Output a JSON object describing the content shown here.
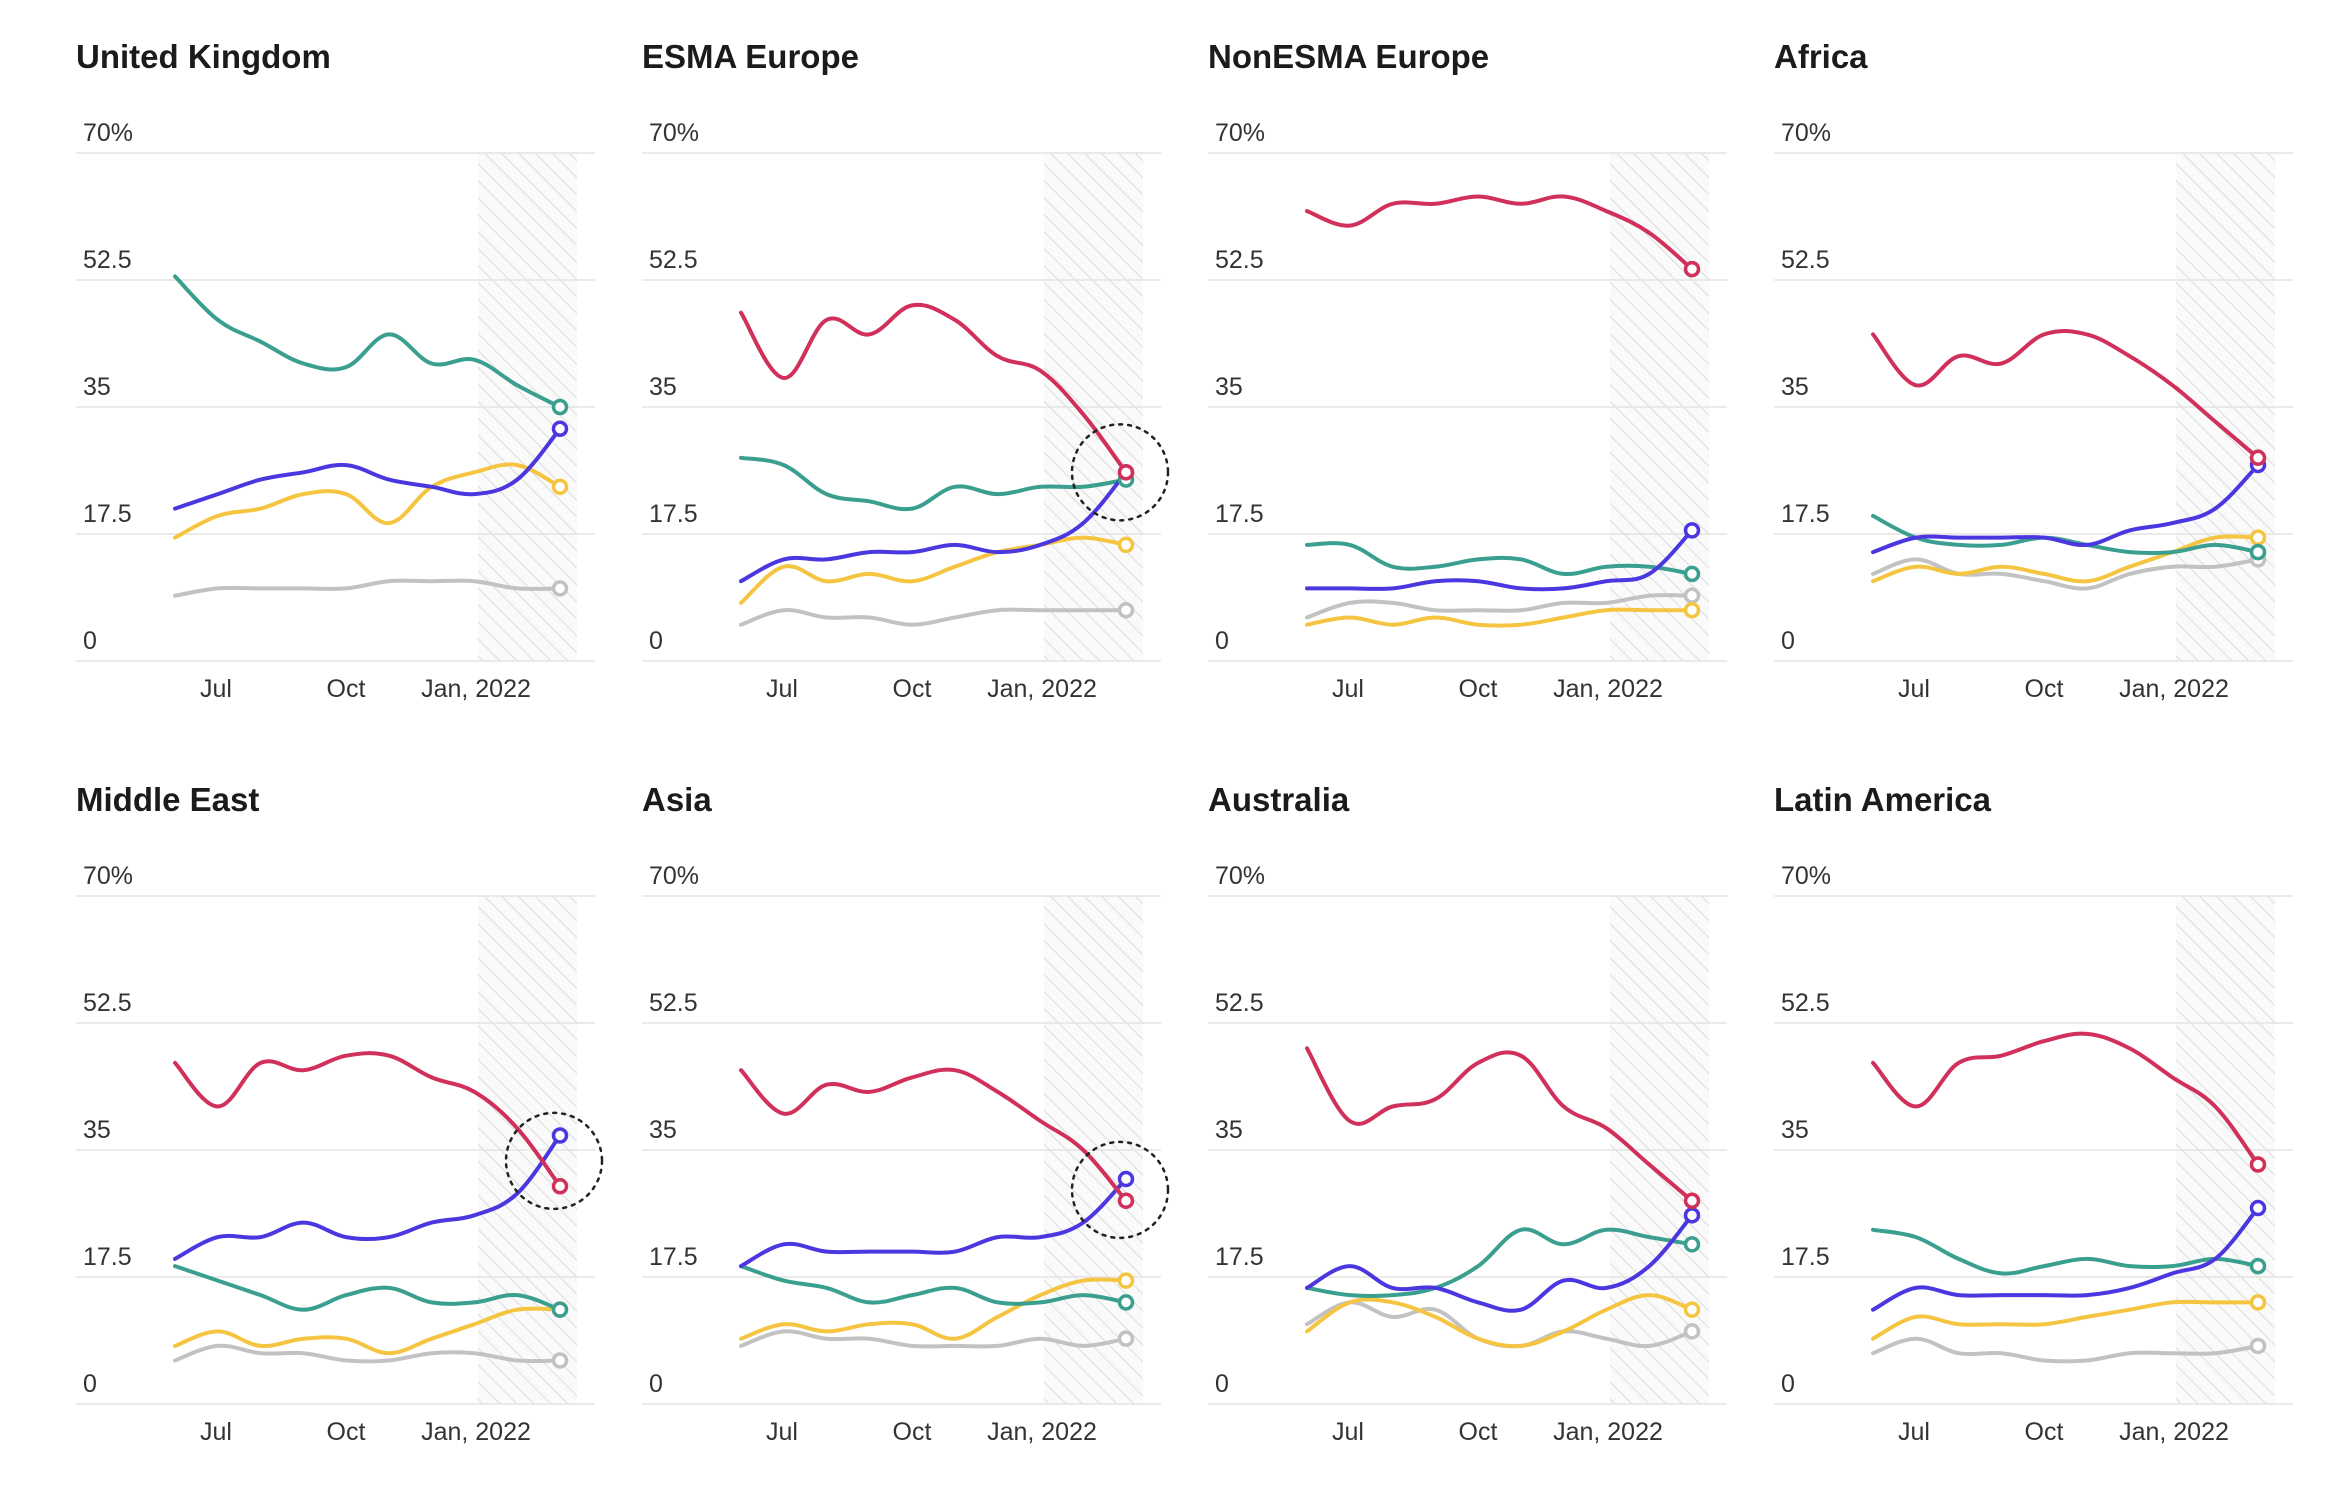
{
  "colors": {
    "red": "#d0305a",
    "teal": "#3b9f8f",
    "blue": "#4a37e0",
    "yellow": "#f5c542",
    "gray": "#c2c2c2",
    "grid": "#e3e3e3",
    "hatch": "#dcdcdc"
  },
  "chart_data": [
    {
      "title": "United Kingdom",
      "type": "line",
      "y_ticks": [
        "70%",
        "52.5",
        "35",
        "17.5",
        "0"
      ],
      "x_ticks": [
        "Jul",
        "Oct",
        "Jan, 2022"
      ],
      "ylim": [
        0,
        70
      ],
      "shaded_region": "Jan, 2022 – end",
      "highlight_circle": false,
      "series": [
        {
          "color": "teal",
          "values": [
            53,
            47,
            44,
            41,
            40.5,
            45,
            41,
            41.5,
            38,
            35
          ]
        },
        {
          "color": "blue",
          "values": [
            21,
            23,
            25,
            26,
            27,
            25,
            24,
            23,
            25,
            32
          ]
        },
        {
          "color": "yellow",
          "values": [
            17,
            20,
            21,
            23,
            23,
            19,
            24,
            26,
            27,
            24
          ]
        },
        {
          "color": "gray",
          "values": [
            9,
            10,
            10,
            10,
            10,
            11,
            11,
            11,
            10,
            10
          ]
        }
      ]
    },
    {
      "title": "ESMA Europe",
      "type": "line",
      "y_ticks": [
        "70%",
        "52.5",
        "35",
        "17.5",
        "0"
      ],
      "x_ticks": [
        "Jul",
        "Oct",
        "Jan, 2022"
      ],
      "ylim": [
        0,
        70
      ],
      "shaded_region": "Jan, 2022 – end",
      "highlight_circle": true,
      "series": [
        {
          "color": "red",
          "values": [
            48,
            39,
            47,
            45,
            49,
            47,
            42,
            40,
            34,
            26
          ]
        },
        {
          "color": "teal",
          "values": [
            28,
            27,
            23,
            22,
            21,
            24,
            23,
            24,
            24,
            25
          ]
        },
        {
          "color": "blue",
          "values": [
            11,
            14,
            14,
            15,
            15,
            16,
            15,
            16,
            19,
            26
          ]
        },
        {
          "color": "yellow",
          "values": [
            8,
            13,
            11,
            12,
            11,
            13,
            15,
            16,
            17,
            16
          ]
        },
        {
          "color": "gray",
          "values": [
            5,
            7,
            6,
            6,
            5,
            6,
            7,
            7,
            7,
            7
          ]
        }
      ]
    },
    {
      "title": "NonESMA Europe",
      "type": "line",
      "y_ticks": [
        "70%",
        "52.5",
        "35",
        "17.5",
        "0"
      ],
      "x_ticks": [
        "Jul",
        "Oct",
        "Jan, 2022"
      ],
      "ylim": [
        0,
        70
      ],
      "shaded_region": "Jan, 2022 – end",
      "highlight_circle": false,
      "series": [
        {
          "color": "red",
          "values": [
            62,
            60,
            63,
            63,
            64,
            63,
            64,
            62,
            59,
            54
          ]
        },
        {
          "color": "teal",
          "values": [
            16,
            16,
            13,
            13,
            14,
            14,
            12,
            13,
            13,
            12
          ]
        },
        {
          "color": "blue",
          "values": [
            10,
            10,
            10,
            11,
            11,
            10,
            10,
            11,
            12,
            18
          ]
        },
        {
          "color": "gray",
          "values": [
            6,
            8,
            8,
            7,
            7,
            7,
            8,
            8,
            9,
            9
          ]
        },
        {
          "color": "yellow",
          "values": [
            5,
            6,
            5,
            6,
            5,
            5,
            6,
            7,
            7,
            7
          ]
        }
      ]
    },
    {
      "title": "Africa",
      "type": "line",
      "y_ticks": [
        "70%",
        "52.5",
        "35",
        "17.5",
        "0"
      ],
      "x_ticks": [
        "Jul",
        "Oct",
        "Jan, 2022"
      ],
      "ylim": [
        0,
        70
      ],
      "shaded_region": "Jan, 2022 – end",
      "highlight_circle": false,
      "series": [
        {
          "color": "red",
          "values": [
            45,
            38,
            42,
            41,
            45,
            45,
            42,
            38,
            33,
            28
          ]
        },
        {
          "color": "blue",
          "values": [
            15,
            17,
            17,
            17,
            17,
            16,
            18,
            19,
            21,
            27
          ]
        },
        {
          "color": "teal",
          "values": [
            20,
            17,
            16,
            16,
            17,
            16,
            15,
            15,
            16,
            15
          ]
        },
        {
          "color": "yellow",
          "values": [
            11,
            13,
            12,
            13,
            12,
            11,
            13,
            15,
            17,
            17
          ]
        },
        {
          "color": "gray",
          "values": [
            12,
            14,
            12,
            12,
            11,
            10,
            12,
            13,
            13,
            14
          ]
        }
      ]
    },
    {
      "title": "Middle East",
      "type": "line",
      "y_ticks": [
        "70%",
        "52.5",
        "35",
        "17.5",
        "0"
      ],
      "x_ticks": [
        "Jul",
        "Oct",
        "Jan, 2022"
      ],
      "ylim": [
        0,
        70
      ],
      "shaded_region": "Jan, 2022 – end",
      "highlight_circle": true,
      "series": [
        {
          "color": "red",
          "values": [
            47,
            41,
            47,
            46,
            48,
            48,
            45,
            43,
            38,
            30
          ]
        },
        {
          "color": "blue",
          "values": [
            20,
            23,
            23,
            25,
            23,
            23,
            25,
            26,
            29,
            37
          ]
        },
        {
          "color": "teal",
          "values": [
            19,
            17,
            15,
            13,
            15,
            16,
            14,
            14,
            15,
            13
          ]
        },
        {
          "color": "yellow",
          "values": [
            8,
            10,
            8,
            9,
            9,
            7,
            9,
            11,
            13,
            13
          ]
        },
        {
          "color": "gray",
          "values": [
            6,
            8,
            7,
            7,
            6,
            6,
            7,
            7,
            6,
            6
          ]
        }
      ]
    },
    {
      "title": "Asia",
      "type": "line",
      "y_ticks": [
        "70%",
        "52.5",
        "35",
        "17.5",
        "0"
      ],
      "x_ticks": [
        "Jul",
        "Oct",
        "Jan, 2022"
      ],
      "ylim": [
        0,
        70
      ],
      "shaded_region": "Jan, 2022 – end",
      "highlight_circle": true,
      "series": [
        {
          "color": "red",
          "values": [
            46,
            40,
            44,
            43,
            45,
            46,
            43,
            39,
            35,
            28
          ]
        },
        {
          "color": "blue",
          "values": [
            19,
            22,
            21,
            21,
            21,
            21,
            23,
            23,
            25,
            31
          ]
        },
        {
          "color": "teal",
          "values": [
            19,
            17,
            16,
            14,
            15,
            16,
            14,
            14,
            15,
            14
          ]
        },
        {
          "color": "yellow",
          "values": [
            9,
            11,
            10,
            11,
            11,
            9,
            12,
            15,
            17,
            17
          ]
        },
        {
          "color": "gray",
          "values": [
            8,
            10,
            9,
            9,
            8,
            8,
            8,
            9,
            8,
            9
          ]
        }
      ]
    },
    {
      "title": "Australia",
      "type": "line",
      "y_ticks": [
        "70%",
        "52.5",
        "35",
        "17.5",
        "0"
      ],
      "x_ticks": [
        "Jul",
        "Oct",
        "Jan, 2022"
      ],
      "ylim": [
        0,
        70
      ],
      "shaded_region": "Jan, 2022 – end",
      "highlight_circle": false,
      "series": [
        {
          "color": "red",
          "values": [
            49,
            39,
            41,
            42,
            47,
            48,
            41,
            38,
            33,
            28
          ]
        },
        {
          "color": "blue",
          "values": [
            16,
            19,
            16,
            16,
            14,
            13,
            17,
            16,
            19,
            26
          ]
        },
        {
          "color": "teal",
          "values": [
            16,
            15,
            15,
            16,
            19,
            24,
            22,
            24,
            23,
            22
          ]
        },
        {
          "color": "yellow",
          "values": [
            10,
            14,
            14,
            12,
            9,
            8,
            10,
            13,
            15,
            13
          ]
        },
        {
          "color": "gray",
          "values": [
            11,
            14,
            12,
            13,
            9,
            8,
            10,
            9,
            8,
            10
          ]
        }
      ]
    },
    {
      "title": "Latin America",
      "type": "line",
      "y_ticks": [
        "70%",
        "52.5",
        "35",
        "17.5",
        "0"
      ],
      "x_ticks": [
        "Jul",
        "Oct",
        "Jan, 2022"
      ],
      "ylim": [
        0,
        70
      ],
      "shaded_region": "Jan, 2022 – end",
      "highlight_circle": false,
      "series": [
        {
          "color": "red",
          "values": [
            47,
            41,
            47,
            48,
            50,
            51,
            49,
            45,
            41,
            33
          ]
        },
        {
          "color": "teal",
          "values": [
            24,
            23,
            20,
            18,
            19,
            20,
            19,
            19,
            20,
            19
          ]
        },
        {
          "color": "blue",
          "values": [
            13,
            16,
            15,
            15,
            15,
            15,
            16,
            18,
            20,
            27
          ]
        },
        {
          "color": "yellow",
          "values": [
            9,
            12,
            11,
            11,
            11,
            12,
            13,
            14,
            14,
            14
          ]
        },
        {
          "color": "gray",
          "values": [
            7,
            9,
            7,
            7,
            6,
            6,
            7,
            7,
            7,
            8
          ]
        }
      ]
    }
  ]
}
